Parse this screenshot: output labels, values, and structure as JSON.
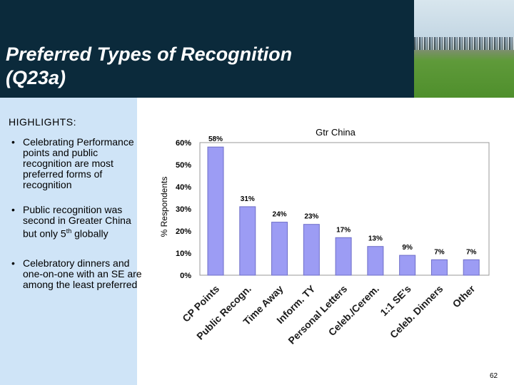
{
  "slide": {
    "title": "Preferred Types of Recognition\n(Q23a)",
    "page_number": "62"
  },
  "highlights": {
    "heading": "HIGHLIGHTS:",
    "bullets": [
      {
        "text": "Celebrating Performance points and public recognition are most preferred forms of recognition"
      },
      {
        "text_before": "Public recognition was second in Greater China but only 5",
        "sup": "th",
        "text_after": " globally"
      },
      {
        "text": "Celebratory dinners and one-on-one with an SE are among the least preferred"
      }
    ]
  },
  "colors": {
    "header_bg": "#0b2a3b",
    "sidebar_bg": "#cfe4f7",
    "bar_fill": "#9c9cf4",
    "bar_stroke": "#6e6ec8",
    "plot_bg": "#ffffff",
    "grid": "#c8c8c8"
  },
  "chart_data": {
    "type": "bar",
    "title": "Gtr China",
    "ylabel": "% Respondents",
    "xlabel": "",
    "ylim": [
      0,
      0.6
    ],
    "yticks": [
      "0%",
      "10%",
      "20%",
      "30%",
      "40%",
      "50%",
      "60%"
    ],
    "categories": [
      "CP Points",
      "Public Recogn.",
      "Time Away",
      "Inform. TY",
      "Personal Letters",
      "Celeb./Cerem.",
      "1:1 SE's",
      "Celeb. Dinners",
      "Other"
    ],
    "values": [
      0.58,
      0.31,
      0.24,
      0.23,
      0.17,
      0.13,
      0.09,
      0.07,
      0.07
    ],
    "data_labels": [
      "58%",
      "31%",
      "24%",
      "23%",
      "17%",
      "13%",
      "9%",
      "7%",
      "7%"
    ],
    "grid": false,
    "legend": "none"
  }
}
